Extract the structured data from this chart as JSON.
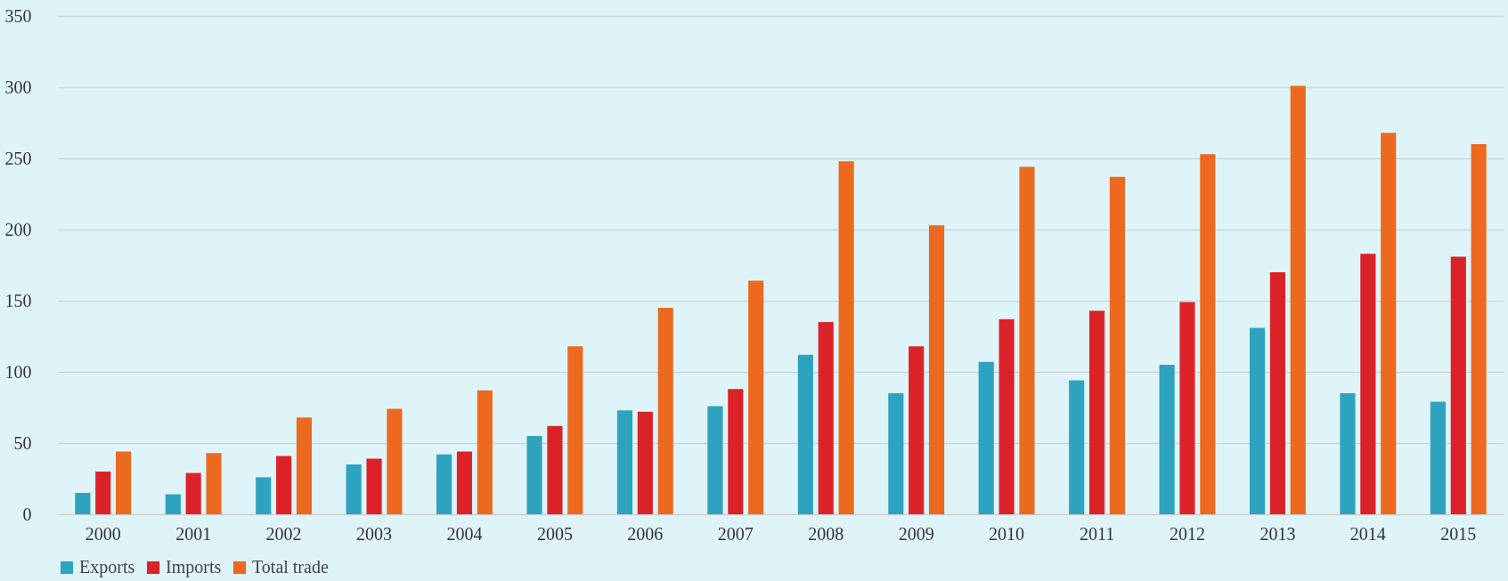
{
  "chart_data": {
    "type": "bar",
    "categories": [
      "2000",
      "2001",
      "2002",
      "2003",
      "2004",
      "2005",
      "2006",
      "2007",
      "2008",
      "2009",
      "2010",
      "2011",
      "2012",
      "2013",
      "2014",
      "2015"
    ],
    "series": [
      {
        "name": "Exports",
        "color": "#2ea3bf",
        "values": [
          15,
          14,
          26,
          35,
          42,
          55,
          73,
          76,
          112,
          85,
          107,
          94,
          105,
          131,
          85,
          79
        ]
      },
      {
        "name": "Imports",
        "color": "#dc2229",
        "values": [
          30,
          29,
          41,
          39,
          44,
          62,
          72,
          88,
          135,
          118,
          137,
          143,
          149,
          170,
          183,
          181
        ]
      },
      {
        "name": "Total trade",
        "color": "#ec6a1f",
        "values": [
          44,
          43,
          68,
          74,
          87,
          118,
          145,
          164,
          248,
          203,
          244,
          237,
          253,
          301,
          268,
          260
        ]
      }
    ],
    "ylim": [
      0,
      350
    ],
    "yticks": [
      0,
      50,
      100,
      150,
      200,
      250,
      300,
      350
    ],
    "grid": "y",
    "legend": "bottom"
  }
}
